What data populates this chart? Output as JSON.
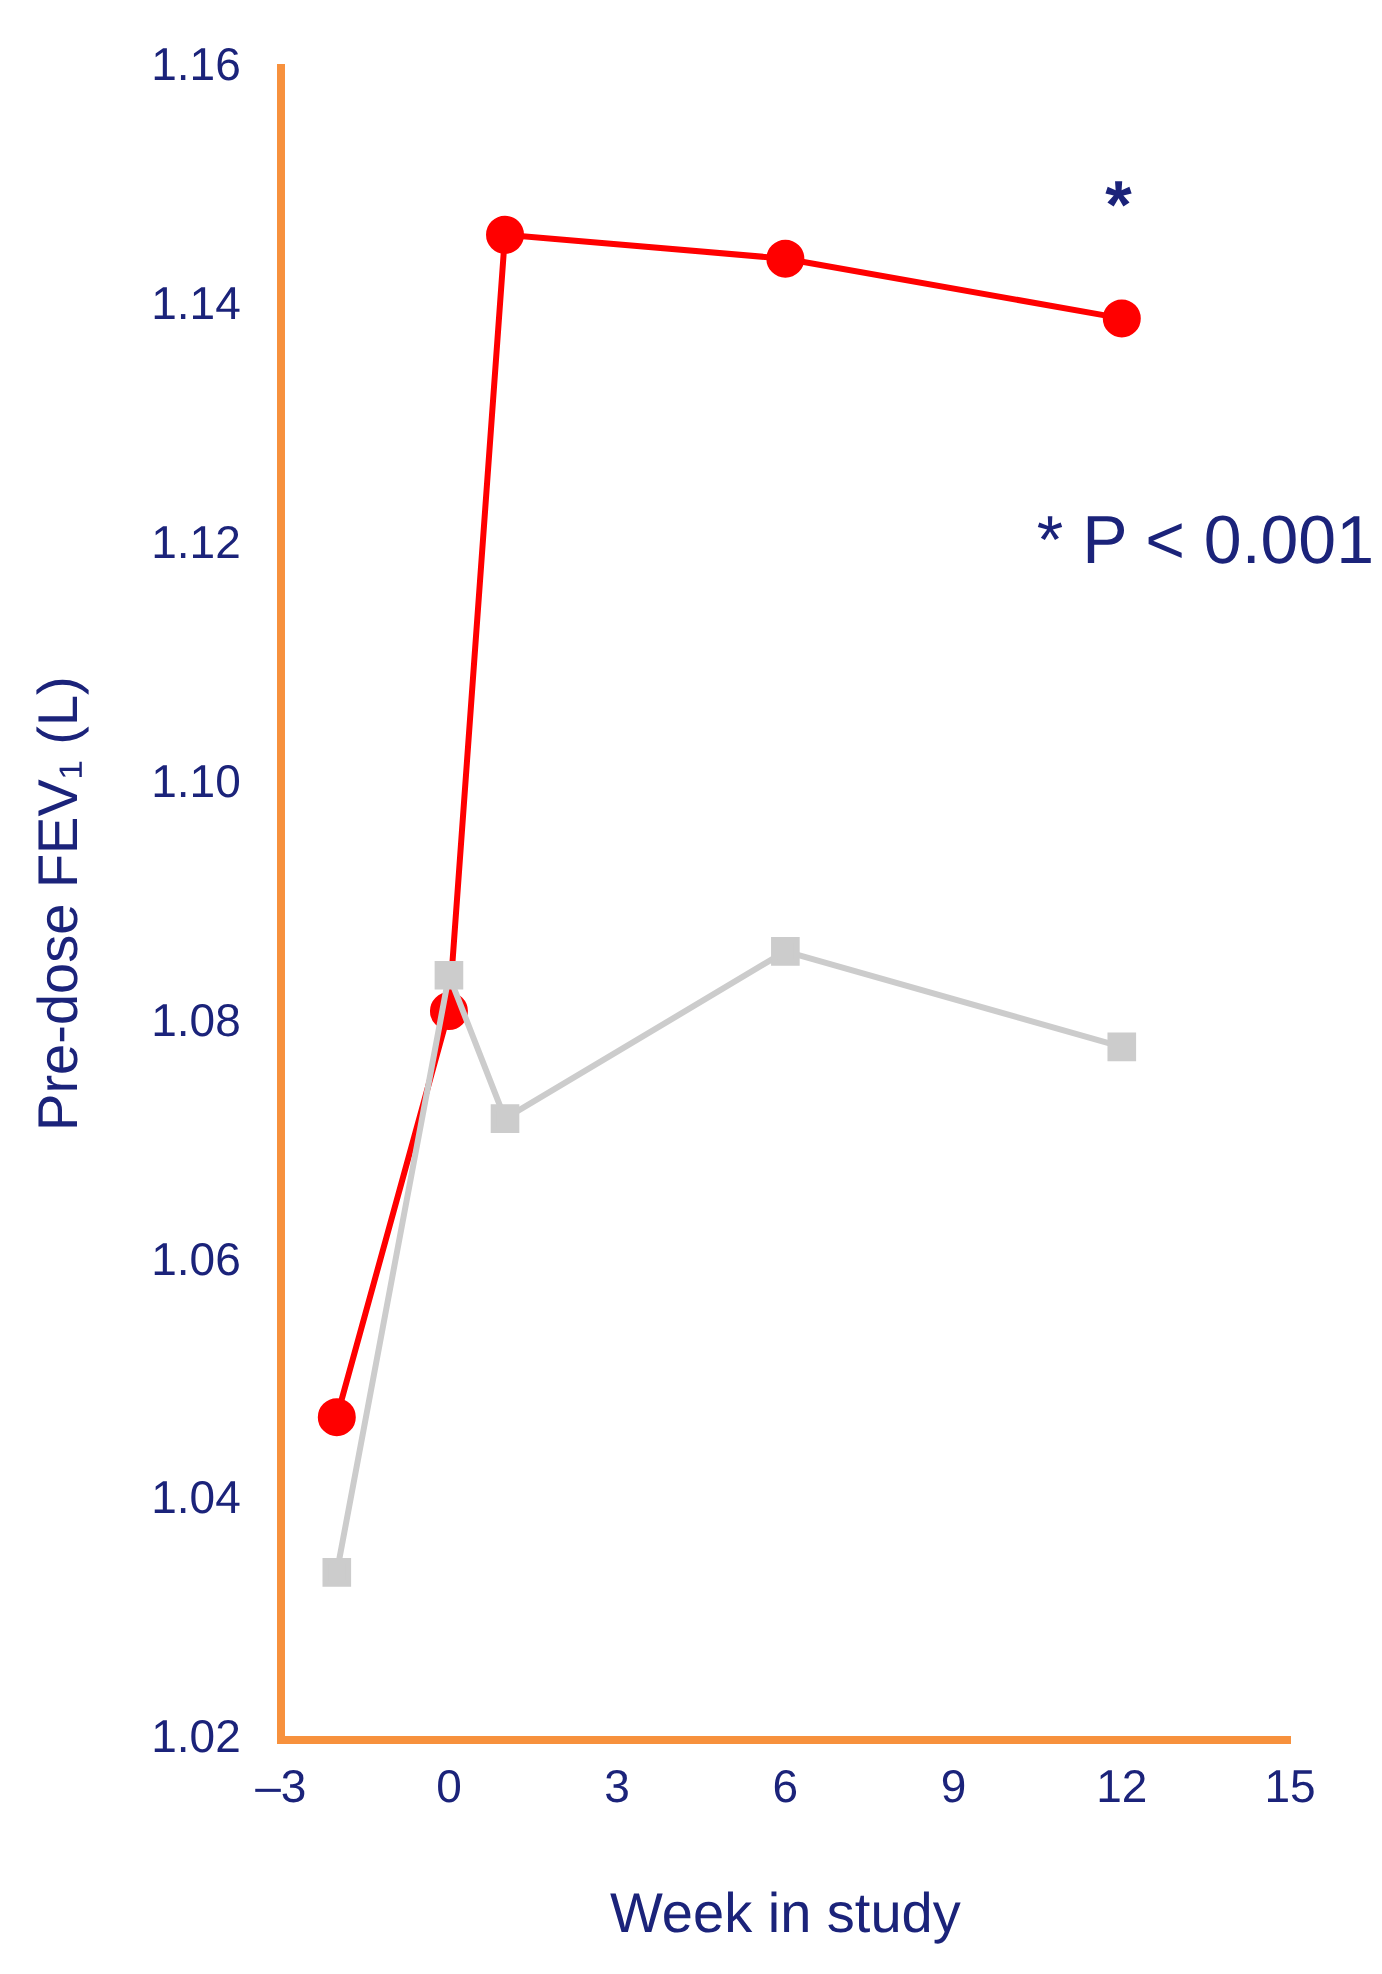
{
  "chart_data": {
    "type": "line",
    "xlabel": "Week in study",
    "ylabel": "Pre-dose FEV₁ (L)",
    "xlim": [
      -3,
      15
    ],
    "xticks": [
      {
        "value": -3,
        "label": "–3"
      },
      0,
      3,
      6,
      9,
      12,
      15
    ],
    "ylim": [
      1.02,
      1.16
    ],
    "yticks": [
      {
        "value": 1.02,
        "label": "1.02"
      },
      {
        "value": 1.04,
        "label": "1.04"
      },
      {
        "value": 1.06,
        "label": "1.06"
      },
      {
        "value": 1.08,
        "label": "1.08"
      },
      {
        "value": 1.1,
        "label": "1.10"
      },
      {
        "value": 1.12,
        "label": "1.12"
      },
      {
        "value": 1.14,
        "label": "1.14"
      },
      {
        "value": 1.16,
        "label": "1.16"
      }
    ],
    "grid": false,
    "legend": false,
    "series": [
      {
        "color": "#cccccc",
        "marker": "square",
        "x": [
          -2,
          0,
          1,
          6,
          12
        ],
        "values": [
          1.034,
          1.084,
          1.072,
          1.086,
          1.078
        ]
      },
      {
        "color": "#ff0000",
        "marker": "circle",
        "x": [
          -2,
          0,
          1,
          6,
          12
        ],
        "values": [
          1.047,
          1.081,
          1.146,
          1.144,
          1.139
        ]
      }
    ],
    "annotations": [
      "*",
      "* P < 0.001"
    ]
  }
}
